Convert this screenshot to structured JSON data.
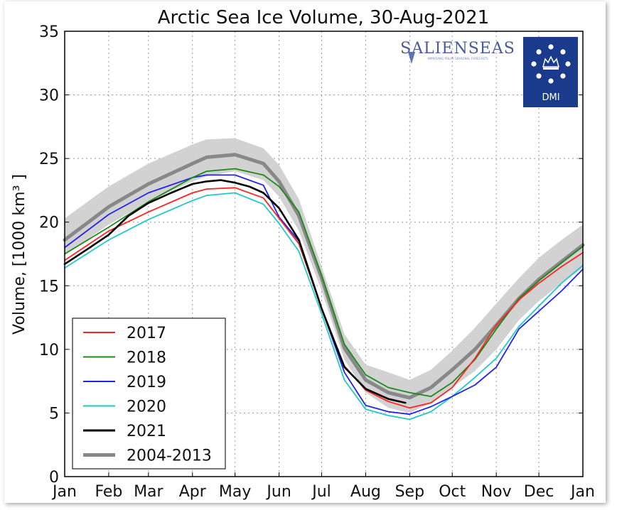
{
  "chart_data": {
    "type": "line",
    "title": "Arctic Sea Ice Volume, 30-Aug-2021",
    "ylabel": "Volume, [1000 km³ ]",
    "xlabel": "",
    "ylim": [
      0,
      35
    ],
    "xlim": [
      0,
      365
    ],
    "yticks": [
      0,
      5,
      10,
      15,
      20,
      25,
      30,
      35
    ],
    "xticks": [
      {
        "label": "Jan",
        "day": 0
      },
      {
        "label": "Feb",
        "day": 31
      },
      {
        "label": "Mar",
        "day": 59
      },
      {
        "label": "Apr",
        "day": 90
      },
      {
        "label": "May",
        "day": 120
      },
      {
        "label": "Jun",
        "day": 151
      },
      {
        "label": "Jul",
        "day": 181
      },
      {
        "label": "Aug",
        "day": 212
      },
      {
        "label": "Sep",
        "day": 243
      },
      {
        "label": "Oct",
        "day": 273
      },
      {
        "label": "Nov",
        "day": 304
      },
      {
        "label": "Dec",
        "day": 334
      },
      {
        "label": "Jan",
        "day": 365
      }
    ],
    "grid": true,
    "legend_position": "lower-left",
    "band": {
      "x": [
        0,
        31,
        59,
        90,
        100,
        120,
        140,
        151,
        165,
        181,
        197,
        212,
        228,
        243,
        258,
        273,
        289,
        304,
        320,
        334,
        350,
        365
      ],
      "upper": [
        20.3,
        22.8,
        24.6,
        26.1,
        26.5,
        26.6,
        25.8,
        24.5,
        21.8,
        16.5,
        11.2,
        8.8,
        8.2,
        7.6,
        8.4,
        9.9,
        11.7,
        13.6,
        15.6,
        17.2,
        18.6,
        19.8
      ],
      "lower": [
        17.4,
        19.8,
        21.6,
        23.2,
        23.6,
        24.0,
        23.3,
        22.0,
        19.3,
        14.6,
        9.2,
        6.6,
        5.4,
        5.0,
        5.8,
        7.0,
        8.3,
        10.0,
        12.3,
        13.8,
        15.2,
        16.4
      ]
    },
    "series": [
      {
        "name": "2017",
        "color": "#ff2222",
        "x": [
          0,
          31,
          59,
          90,
          100,
          120,
          140,
          151,
          165,
          181,
          197,
          212,
          228,
          243,
          258,
          273,
          289,
          304,
          320,
          334,
          350,
          365
        ],
        "y": [
          17.0,
          19.3,
          20.8,
          22.3,
          22.6,
          22.7,
          21.9,
          20.3,
          18.3,
          13.2,
          8.7,
          6.8,
          5.9,
          5.4,
          5.8,
          7.0,
          9.3,
          11.9,
          13.9,
          15.2,
          16.5,
          17.6
        ]
      },
      {
        "name": "2018",
        "color": "#1a8a1a",
        "x": [
          0,
          31,
          59,
          90,
          100,
          120,
          140,
          151,
          165,
          181,
          197,
          212,
          228,
          243,
          258,
          273,
          289,
          304,
          320,
          334,
          350,
          365
        ],
        "y": [
          17.5,
          19.6,
          21.6,
          23.5,
          24.0,
          24.2,
          23.7,
          22.8,
          20.8,
          15.8,
          10.4,
          8.0,
          7.0,
          6.6,
          6.3,
          7.4,
          9.2,
          11.6,
          14.0,
          15.4,
          16.8,
          18.1
        ]
      },
      {
        "name": "2019",
        "color": "#2222ee",
        "x": [
          0,
          31,
          59,
          90,
          100,
          120,
          140,
          151,
          165,
          181,
          197,
          212,
          228,
          243,
          258,
          273,
          289,
          304,
          320,
          334,
          350,
          365
        ],
        "y": [
          18.0,
          20.6,
          22.3,
          23.5,
          23.7,
          23.7,
          22.9,
          20.4,
          18.5,
          13.2,
          8.2,
          5.6,
          5.1,
          4.9,
          5.5,
          6.3,
          7.2,
          8.6,
          11.6,
          13.0,
          14.6,
          16.3
        ]
      },
      {
        "name": "2020",
        "color": "#22c8c8",
        "x": [
          0,
          31,
          59,
          90,
          100,
          120,
          140,
          151,
          165,
          181,
          197,
          212,
          228,
          243,
          258,
          273,
          289,
          304,
          320,
          334,
          350,
          365
        ],
        "y": [
          16.4,
          18.6,
          20.2,
          21.7,
          22.1,
          22.3,
          21.4,
          19.9,
          17.7,
          12.8,
          7.6,
          5.3,
          4.8,
          4.5,
          5.1,
          6.3,
          7.8,
          9.3,
          11.8,
          13.4,
          15.2,
          16.6
        ]
      },
      {
        "name": "2021",
        "color": "#000000",
        "x": [
          0,
          15,
          31,
          45,
          59,
          75,
          90,
          100,
          110,
          120,
          130,
          140,
          151,
          165,
          181,
          197,
          212,
          228,
          240
        ],
        "y": [
          16.7,
          17.8,
          19.0,
          20.5,
          21.5,
          22.3,
          23.0,
          23.2,
          23.3,
          23.1,
          22.8,
          22.3,
          21.1,
          18.6,
          13.2,
          8.6,
          6.9,
          6.1,
          5.8
        ]
      },
      {
        "name": "2004-2013",
        "color": "#888888",
        "x": [
          0,
          31,
          59,
          90,
          100,
          120,
          140,
          151,
          165,
          181,
          197,
          212,
          228,
          243,
          258,
          273,
          289,
          304,
          320,
          334,
          350,
          365
        ],
        "y": [
          18.6,
          21.2,
          23.0,
          24.6,
          25.1,
          25.3,
          24.6,
          23.2,
          20.5,
          15.6,
          10.1,
          7.6,
          6.6,
          6.2,
          7.0,
          8.4,
          10.0,
          11.9,
          14.0,
          15.5,
          16.9,
          18.2
        ]
      }
    ]
  },
  "logos": {
    "salienseas": "SALIENSEAS",
    "salienseas_tagline": "IMPROVING POLAR SEASONAL FORECASTS",
    "dmi": "DMI"
  }
}
